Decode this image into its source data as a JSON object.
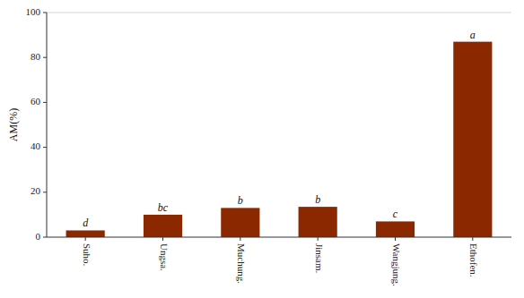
{
  "chart_data": {
    "type": "bar",
    "categories": [
      "Suho.",
      "Ungsa.",
      "Muchung.",
      "Jinsam.",
      "Wangjung.",
      "Ethofen."
    ],
    "values": [
      3.0,
      10.0,
      13.0,
      13.5,
      7.0,
      87.0
    ],
    "annotations": [
      "d",
      "bc",
      "b",
      "b",
      "c",
      "a"
    ],
    "color": "#8B2800",
    "ylabel": "AM(%)",
    "ylim": [
      0,
      100
    ],
    "yticks": [
      0,
      20,
      40,
      60,
      80,
      100
    ],
    "grid": false
  }
}
